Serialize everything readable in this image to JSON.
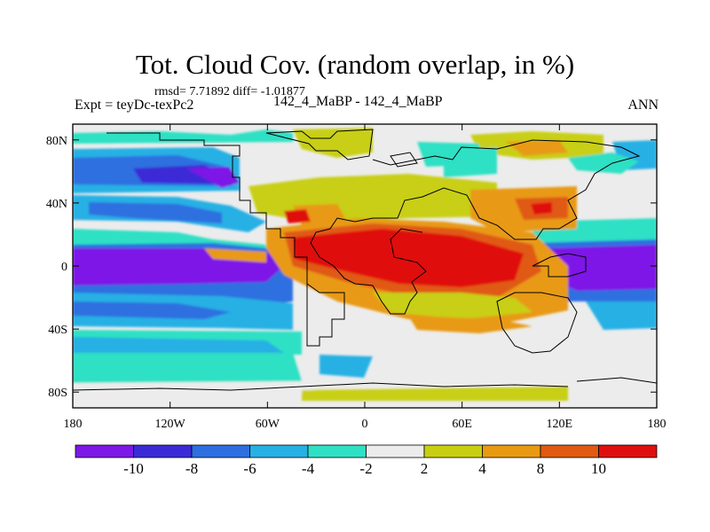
{
  "title": "Tot. Cloud Cov. (random overlap, in %)",
  "stats": "rmsd= 7.71892 diff= -1.01877",
  "expt": "Expt = teyDc-texPc2",
  "center_label": "142_4_MaBP - 142_4_MaBP",
  "season": "ANN",
  "axes": {
    "x_ticks": [
      "180",
      "120W",
      "60W",
      "0",
      "60E",
      "120E",
      "180"
    ],
    "y_ticks": [
      "80N",
      "40N",
      "0",
      "40S",
      "80S"
    ]
  },
  "colorbar": {
    "labels": [
      "-10",
      "-8",
      "-6",
      "-4",
      "-2",
      "2",
      "4",
      "8",
      "10"
    ],
    "colors": [
      "#7d18e6",
      "#3b2bd6",
      "#2d6fe0",
      "#27b0e4",
      "#2fe0c4",
      "#ececec",
      "#c8cf12",
      "#e89a12",
      "#e05a12",
      "#e00f0f"
    ]
  }
}
